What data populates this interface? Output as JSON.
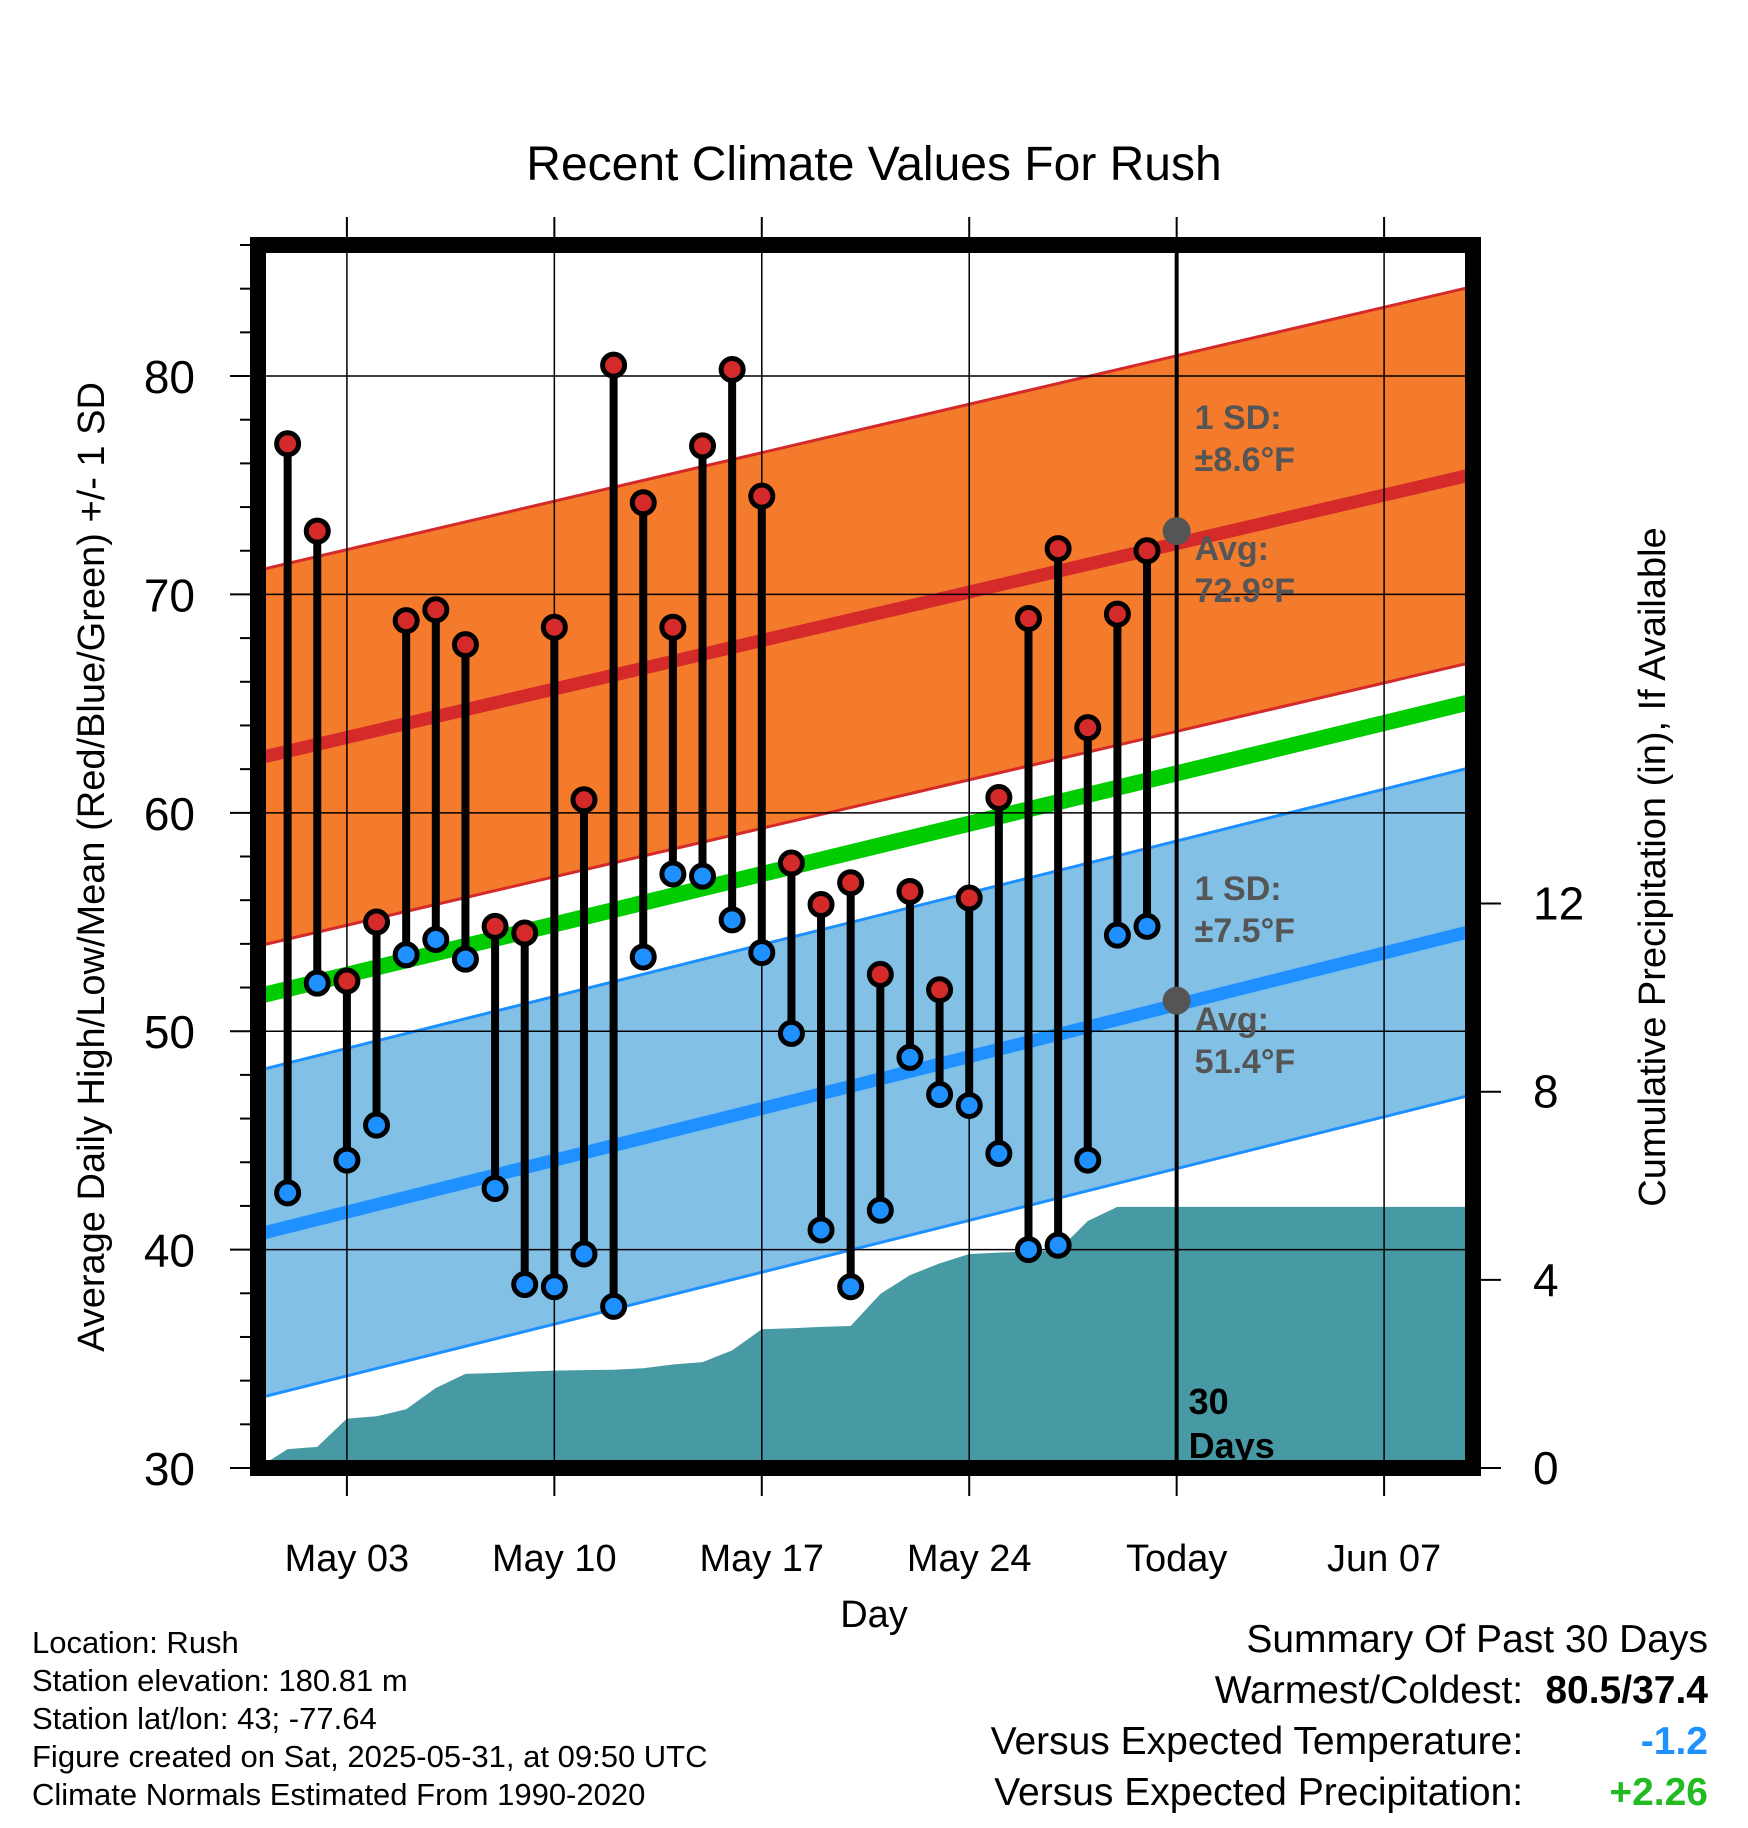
{
  "chart_data": {
    "type": "line",
    "title": "Recent Climate Values For Rush",
    "xlabel": "Day",
    "ylabel_left": "Average Daily High/Low/Mean (Red/Blue/Green) +/- 1 SD",
    "ylabel_right": "Cumulative Precipitation (in), If Available",
    "x_range": [
      "2025-04-30",
      "2025-06-10"
    ],
    "y_range": [
      30,
      86
    ],
    "y2_range": [
      0,
      26
    ],
    "x_ticks": [
      {
        "date": "2025-05-03",
        "label": "May 03"
      },
      {
        "date": "2025-05-10",
        "label": "May 10"
      },
      {
        "date": "2025-05-17",
        "label": "May 17"
      },
      {
        "date": "2025-05-24",
        "label": "May 24"
      },
      {
        "date": "2025-05-31",
        "label": "Today"
      },
      {
        "date": "2025-06-07",
        "label": "Jun 07"
      }
    ],
    "y_ticks": [
      30,
      40,
      50,
      60,
      70,
      80
    ],
    "y2_ticks": [
      0,
      4,
      8,
      12
    ],
    "grid": true,
    "today": "2025-05-31",
    "today_label_line1": "30",
    "today_label_line2": "Days",
    "daily": [
      {
        "date": "2025-05-01",
        "high": 76.9,
        "low": 42.6
      },
      {
        "date": "2025-05-02",
        "high": 72.9,
        "low": 52.2
      },
      {
        "date": "2025-05-03",
        "high": 52.3,
        "low": 44.1
      },
      {
        "date": "2025-05-04",
        "high": 55.0,
        "low": 45.7
      },
      {
        "date": "2025-05-05",
        "high": 68.8,
        "low": 53.5
      },
      {
        "date": "2025-05-06",
        "high": 69.3,
        "low": 54.2
      },
      {
        "date": "2025-05-07",
        "high": 67.7,
        "low": 53.3
      },
      {
        "date": "2025-05-08",
        "high": 54.8,
        "low": 42.8
      },
      {
        "date": "2025-05-09",
        "high": 54.5,
        "low": 38.4
      },
      {
        "date": "2025-05-10",
        "high": 68.5,
        "low": 38.3
      },
      {
        "date": "2025-05-11",
        "high": 60.6,
        "low": 39.8
      },
      {
        "date": "2025-05-12",
        "high": 80.5,
        "low": 37.4
      },
      {
        "date": "2025-05-13",
        "high": 74.2,
        "low": 53.4
      },
      {
        "date": "2025-05-14",
        "high": 68.5,
        "low": 57.2
      },
      {
        "date": "2025-05-15",
        "high": 76.8,
        "low": 57.1
      },
      {
        "date": "2025-05-16",
        "high": 80.3,
        "low": 55.1
      },
      {
        "date": "2025-05-17",
        "high": 74.5,
        "low": 53.6
      },
      {
        "date": "2025-05-18",
        "high": 57.7,
        "low": 49.9
      },
      {
        "date": "2025-05-19",
        "high": 55.8,
        "low": 40.9
      },
      {
        "date": "2025-05-20",
        "high": 56.8,
        "low": 38.3
      },
      {
        "date": "2025-05-21",
        "high": 52.6,
        "low": 41.8
      },
      {
        "date": "2025-05-22",
        "high": 56.4,
        "low": 48.8
      },
      {
        "date": "2025-05-23",
        "high": 51.9,
        "low": 47.1
      },
      {
        "date": "2025-05-24",
        "high": 56.1,
        "low": 46.6
      },
      {
        "date": "2025-05-25",
        "high": 60.7,
        "low": 44.4
      },
      {
        "date": "2025-05-26",
        "high": 68.9,
        "low": 40.0
      },
      {
        "date": "2025-05-27",
        "high": 72.1,
        "low": 40.2
      },
      {
        "date": "2025-05-28",
        "high": 63.9,
        "low": 44.1
      },
      {
        "date": "2025-05-29",
        "high": 69.1,
        "low": 54.4
      },
      {
        "date": "2025-05-30",
        "high": 72.0,
        "low": 54.8
      }
    ],
    "normal_high": {
      "start": 62.5,
      "end": 75.5,
      "sd": 8.6
    },
    "normal_low": {
      "start": 40.7,
      "end": 54.6,
      "sd": 7.5
    },
    "normal_mean": {
      "start": 51.6,
      "end": 65.1
    },
    "precip_cumulative": [
      {
        "date": "2025-04-30",
        "value": 0.0
      },
      {
        "date": "2025-05-01",
        "value": 0.4
      },
      {
        "date": "2025-05-02",
        "value": 0.45
      },
      {
        "date": "2025-05-03",
        "value": 1.05
      },
      {
        "date": "2025-05-04",
        "value": 1.1
      },
      {
        "date": "2025-05-05",
        "value": 1.25
      },
      {
        "date": "2025-05-06",
        "value": 1.7
      },
      {
        "date": "2025-05-07",
        "value": 2.0
      },
      {
        "date": "2025-05-08",
        "value": 2.02
      },
      {
        "date": "2025-05-09",
        "value": 2.05
      },
      {
        "date": "2025-05-10",
        "value": 2.07
      },
      {
        "date": "2025-05-11",
        "value": 2.08
      },
      {
        "date": "2025-05-12",
        "value": 2.09
      },
      {
        "date": "2025-05-13",
        "value": 2.12
      },
      {
        "date": "2025-05-14",
        "value": 2.2
      },
      {
        "date": "2025-05-15",
        "value": 2.25
      },
      {
        "date": "2025-05-16",
        "value": 2.5
      },
      {
        "date": "2025-05-17",
        "value": 2.95
      },
      {
        "date": "2025-05-18",
        "value": 2.97
      },
      {
        "date": "2025-05-19",
        "value": 3.0
      },
      {
        "date": "2025-05-20",
        "value": 3.02
      },
      {
        "date": "2025-05-21",
        "value": 3.7
      },
      {
        "date": "2025-05-22",
        "value": 4.1
      },
      {
        "date": "2025-05-23",
        "value": 4.35
      },
      {
        "date": "2025-05-24",
        "value": 4.55
      },
      {
        "date": "2025-05-25",
        "value": 4.58
      },
      {
        "date": "2025-05-26",
        "value": 4.6
      },
      {
        "date": "2025-05-27",
        "value": 4.62
      },
      {
        "date": "2025-05-28",
        "value": 5.25
      },
      {
        "date": "2025-05-29",
        "value": 5.55
      },
      {
        "date": "2025-06-10",
        "value": 5.55
      }
    ],
    "annotations": {
      "high_sd": {
        "line1": "1 SD:",
        "line2": "±8.6°F"
      },
      "high_avg": {
        "line1": "Avg:",
        "line2": "72.9°F",
        "value": 72.9
      },
      "low_sd": {
        "line1": "1 SD:",
        "line2": "±7.5°F"
      },
      "low_avg": {
        "line1": "Avg:",
        "line2": "51.4°F",
        "value": 51.4
      }
    },
    "colors": {
      "high_band": "#f47a2c",
      "high_line": "#d42a2a",
      "low_band": "#82c0e6",
      "low_line": "#1e90ff",
      "mean_line": "#00cc00",
      "precip": "#479aa3",
      "high_dot": "#d42a2a",
      "low_dot": "#1e90ff",
      "annotation_text": "#555555"
    }
  },
  "info": {
    "location": "Location: Rush",
    "elevation": "Station elevation: 180.81 m",
    "latlon": "Station lat/lon: 43; -77.64",
    "created": "Figure created on Sat, 2025-05-31, at 09:50 UTC",
    "normals": "Climate Normals Estimated From 1990-2020"
  },
  "summary": {
    "heading": "Summary Of Past 30 Days",
    "warm_cold_label": "Warmest/Coldest:",
    "warm_cold_value": "80.5/37.4",
    "temp_label": "Versus Expected Temperature:",
    "temp_value": "-1.2",
    "temp_color": "#1e90ff",
    "precip_label": "Versus Expected Precipitation:",
    "precip_value": "+2.26",
    "precip_color": "#22bb22"
  }
}
